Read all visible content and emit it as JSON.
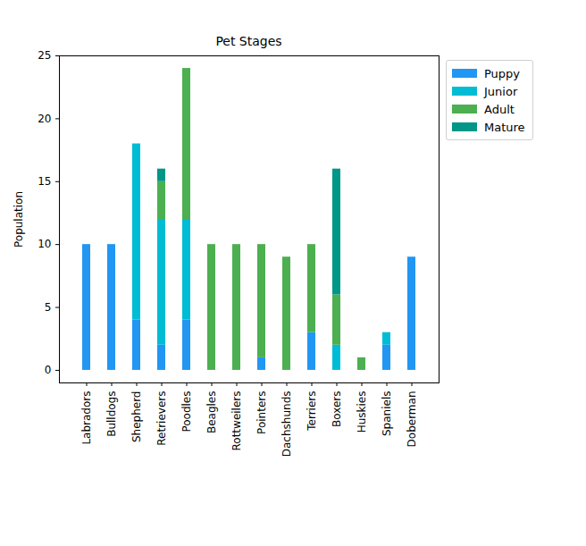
{
  "chart_data": {
    "type": "bar",
    "title": "Pet Stages",
    "ylabel": "Population",
    "categories": [
      "Labradors",
      "Bulldogs",
      "Shepherd",
      "Retrievers",
      "Poodles",
      "Beagles",
      "Rottweilers",
      "Pointers",
      "Dachshunds",
      "Terriers",
      "Boxers",
      "Huskies",
      "Spaniels",
      "Doberman"
    ],
    "series": [
      {
        "name": "Puppy",
        "color": "#2196f3",
        "values": [
          10,
          10,
          4,
          2,
          4,
          0,
          0,
          1,
          0,
          3,
          0,
          0,
          2,
          9
        ]
      },
      {
        "name": "Junior",
        "color": "#00bcd4",
        "values": [
          0,
          0,
          14,
          10,
          8,
          0,
          0,
          0,
          0,
          0,
          2,
          0,
          1,
          0
        ]
      },
      {
        "name": "Adult",
        "color": "#4caf50",
        "values": [
          0,
          0,
          0,
          3,
          12,
          10,
          10,
          9,
          9,
          7,
          4,
          1,
          0,
          0
        ]
      },
      {
        "name": "Mature",
        "color": "#009688",
        "values": [
          0,
          0,
          0,
          1,
          0,
          0,
          0,
          0,
          0,
          0,
          10,
          0,
          0,
          0
        ]
      }
    ],
    "stacked": true,
    "ylim": [
      -1,
      25
    ],
    "yticks": [
      0,
      5,
      10,
      15,
      20,
      25
    ],
    "grid": false,
    "legend": "upper right"
  }
}
